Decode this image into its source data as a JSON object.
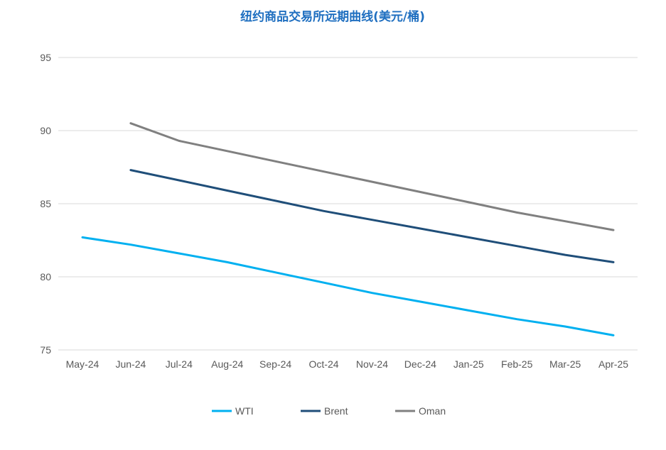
{
  "chart_data": {
    "type": "line",
    "title": "纽约商品交易所远期曲线(美元/桶)",
    "xlabel": "",
    "ylabel": "",
    "categories": [
      "May-24",
      "Jun-24",
      "Jul-24",
      "Aug-24",
      "Sep-24",
      "Oct-24",
      "Nov-24",
      "Dec-24",
      "Jan-25",
      "Feb-25",
      "Mar-25",
      "Apr-25"
    ],
    "ylim": [
      75,
      95
    ],
    "yticks": [
      75,
      80,
      85,
      90,
      95
    ],
    "grid": true,
    "legend_position": "bottom",
    "series": [
      {
        "name": "WTI",
        "color": "#00b0f0",
        "values": [
          82.7,
          82.2,
          81.6,
          81.0,
          80.3,
          79.6,
          78.9,
          78.3,
          77.7,
          77.1,
          76.6,
          76.0
        ]
      },
      {
        "name": "Brent",
        "color": "#1f4e79",
        "values": [
          null,
          87.3,
          86.6,
          85.9,
          85.2,
          84.5,
          83.9,
          83.3,
          82.7,
          82.1,
          81.5,
          81.0
        ]
      },
      {
        "name": "Oman",
        "color": "#808080",
        "values": [
          null,
          90.5,
          89.3,
          88.6,
          87.9,
          87.2,
          86.5,
          85.8,
          85.1,
          84.4,
          83.8,
          83.2
        ]
      }
    ]
  }
}
